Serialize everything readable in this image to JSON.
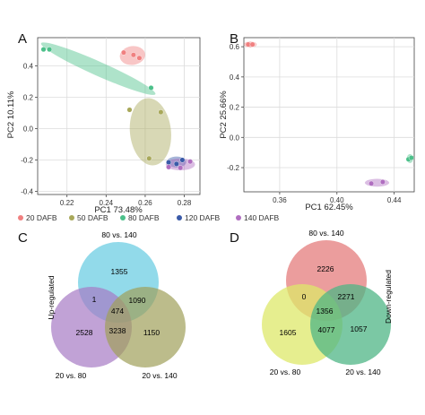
{
  "panels": {
    "A": "A",
    "B": "B",
    "C": "C",
    "D": "D"
  },
  "colors": {
    "20 DAFB": "#f08080",
    "50 DAFB": "#a8a85a",
    "80 DAFB": "#4cc08a",
    "120 DAFB": "#3a5aa8",
    "140 DAFB": "#b06ec0",
    "venn_c_top": "#7fd3e6",
    "venn_c_left": "#a67bc4",
    "venn_c_right": "#9fa05a",
    "venn_d_top": "#e88c8c",
    "venn_d_left": "#dde86a",
    "venn_d_right": "#4fb585"
  },
  "chart_data": [
    {
      "type": "scatter",
      "panel": "A",
      "xlabel": "PC1 73.48%",
      "ylabel": "PC2 10.11%",
      "xlim": [
        0.205,
        0.288
      ],
      "ylim": [
        -0.42,
        0.58
      ],
      "xticks": [
        0.22,
        0.24,
        0.26,
        0.28
      ],
      "yticks": [
        -0.4,
        -0.2,
        0.0,
        0.2,
        0.4
      ],
      "xticklabels": [
        "0.22",
        "0.24",
        "0.26",
        "0.28"
      ],
      "yticklabels": [
        "-0.4",
        "-0.2",
        "0.0",
        "0.2",
        "0.4"
      ],
      "grid": true,
      "series": [
        {
          "name": "20 DAFB",
          "points": [
            [
              0.249,
              0.485
            ],
            [
              0.254,
              0.47
            ],
            [
              0.257,
              0.45
            ]
          ],
          "ellipse": {
            "cx": 0.2535,
            "cy": 0.466,
            "rx": 0.0065,
            "ry": 0.06,
            "angle": -8
          }
        },
        {
          "name": "50 DAFB",
          "points": [
            [
              0.252,
              0.12
            ],
            [
              0.268,
              0.105
            ],
            [
              0.262,
              -0.19
            ]
          ],
          "ellipse": {
            "cx": 0.2627,
            "cy": -0.02,
            "rx": 0.0105,
            "ry": 0.215,
            "angle": -6
          }
        },
        {
          "name": "80 DAFB",
          "points": [
            [
              0.208,
              0.505
            ],
            [
              0.211,
              0.505
            ],
            [
              0.263,
              0.26
            ]
          ],
          "ellipse": {
            "cx": 0.236,
            "cy": 0.382,
            "rx": 0.032,
            "ry": 0.045,
            "angle": 24
          }
        },
        {
          "name": "120 DAFB",
          "points": [
            [
              0.272,
              -0.215
            ],
            [
              0.276,
              -0.225
            ],
            [
              0.279,
              -0.2
            ]
          ],
          "ellipse": {
            "cx": 0.276,
            "cy": -0.213,
            "rx": 0.005,
            "ry": 0.035,
            "angle": 0
          }
        },
        {
          "name": "140 DAFB",
          "points": [
            [
              0.272,
              -0.245
            ],
            [
              0.278,
              -0.25
            ],
            [
              0.283,
              -0.21
            ]
          ],
          "ellipse": {
            "cx": 0.278,
            "cy": -0.228,
            "rx": 0.0075,
            "ry": 0.038,
            "angle": 0
          }
        }
      ]
    },
    {
      "type": "scatter",
      "panel": "B",
      "xlabel": "PC1 62.45%",
      "ylabel": "PC2 25.66%",
      "xlim": [
        0.335,
        0.454
      ],
      "ylim": [
        -0.36,
        0.66
      ],
      "xticks": [
        0.36,
        0.4,
        0.44
      ],
      "yticks": [
        -0.2,
        0.0,
        0.2,
        0.4,
        0.6
      ],
      "xticklabels": [
        "0.36",
        "0.40",
        "0.44"
      ],
      "yticklabels": [
        "-0.2",
        "0.0",
        "0.2",
        "0.4",
        "0.6"
      ],
      "grid": true,
      "series": [
        {
          "name": "20 DAFB",
          "points": [
            [
              0.338,
              0.615
            ],
            [
              0.341,
              0.615
            ]
          ],
          "ellipse": {
            "cx": 0.3395,
            "cy": 0.615,
            "rx": 0.0045,
            "ry": 0.02,
            "angle": 0
          }
        },
        {
          "name": "80 DAFB",
          "points": [
            [
              0.45,
              -0.145
            ],
            [
              0.452,
              -0.135
            ]
          ],
          "ellipse": {
            "cx": 0.451,
            "cy": -0.14,
            "rx": 0.0022,
            "ry": 0.03,
            "angle": 0
          }
        },
        {
          "name": "140 DAFB",
          "points": [
            [
              0.424,
              -0.305
            ],
            [
              0.432,
              -0.295
            ]
          ],
          "ellipse": {
            "cx": 0.428,
            "cy": -0.3,
            "rx": 0.0085,
            "ry": 0.026,
            "angle": 0
          }
        }
      ]
    }
  ],
  "legend": [
    "20 DAFB",
    "50 DAFB",
    "80 DAFB",
    "120 DAFB",
    "140 DAFB"
  ],
  "venn_c": {
    "top_label": "80 vs. 140",
    "left_label": "20 vs. 80",
    "right_label": "20 vs. 140",
    "side_label": "Up-regulated",
    "counts": {
      "top_only": "1355",
      "top_left": "1",
      "top_right": "1090",
      "center": "474",
      "left_only": "2528",
      "left_right": "3238",
      "right_only": "1150"
    }
  },
  "venn_d": {
    "top_label": "80 vs. 140",
    "left_label": "20 vs. 80",
    "right_label": "20 vs. 140",
    "side_label": "Down-regulated",
    "counts": {
      "top_only": "2226",
      "top_left": "0",
      "top_right": "2271",
      "center": "1356",
      "left_only": "1605",
      "left_right": "4077",
      "right_only": "1057"
    }
  }
}
